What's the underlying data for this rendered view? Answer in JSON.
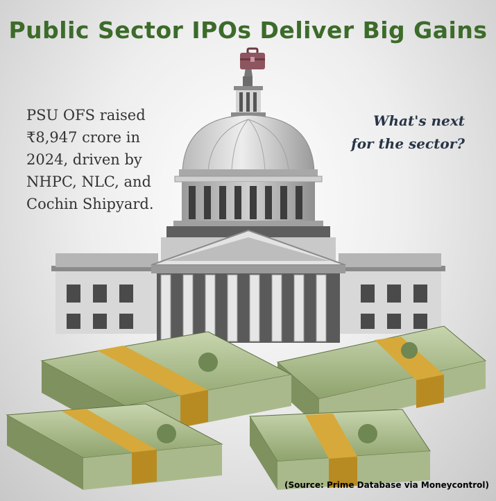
{
  "title": "Public Sector IPOs Deliver Big Gains",
  "title_icon": "briefcase-icon",
  "left_text": "PSU OFS raised ₹8,947 crore in 2024, driven by NHPC, NLC, and Cochin Shipyard.",
  "right_text": "What's next for the sector?",
  "source": "(Source: Prime Database via Moneycontrol)",
  "colors": {
    "title": "#3c6b2a",
    "building": "#7d7d7d",
    "money_green": "#9cb07e",
    "money_band": "#d6a93a"
  }
}
